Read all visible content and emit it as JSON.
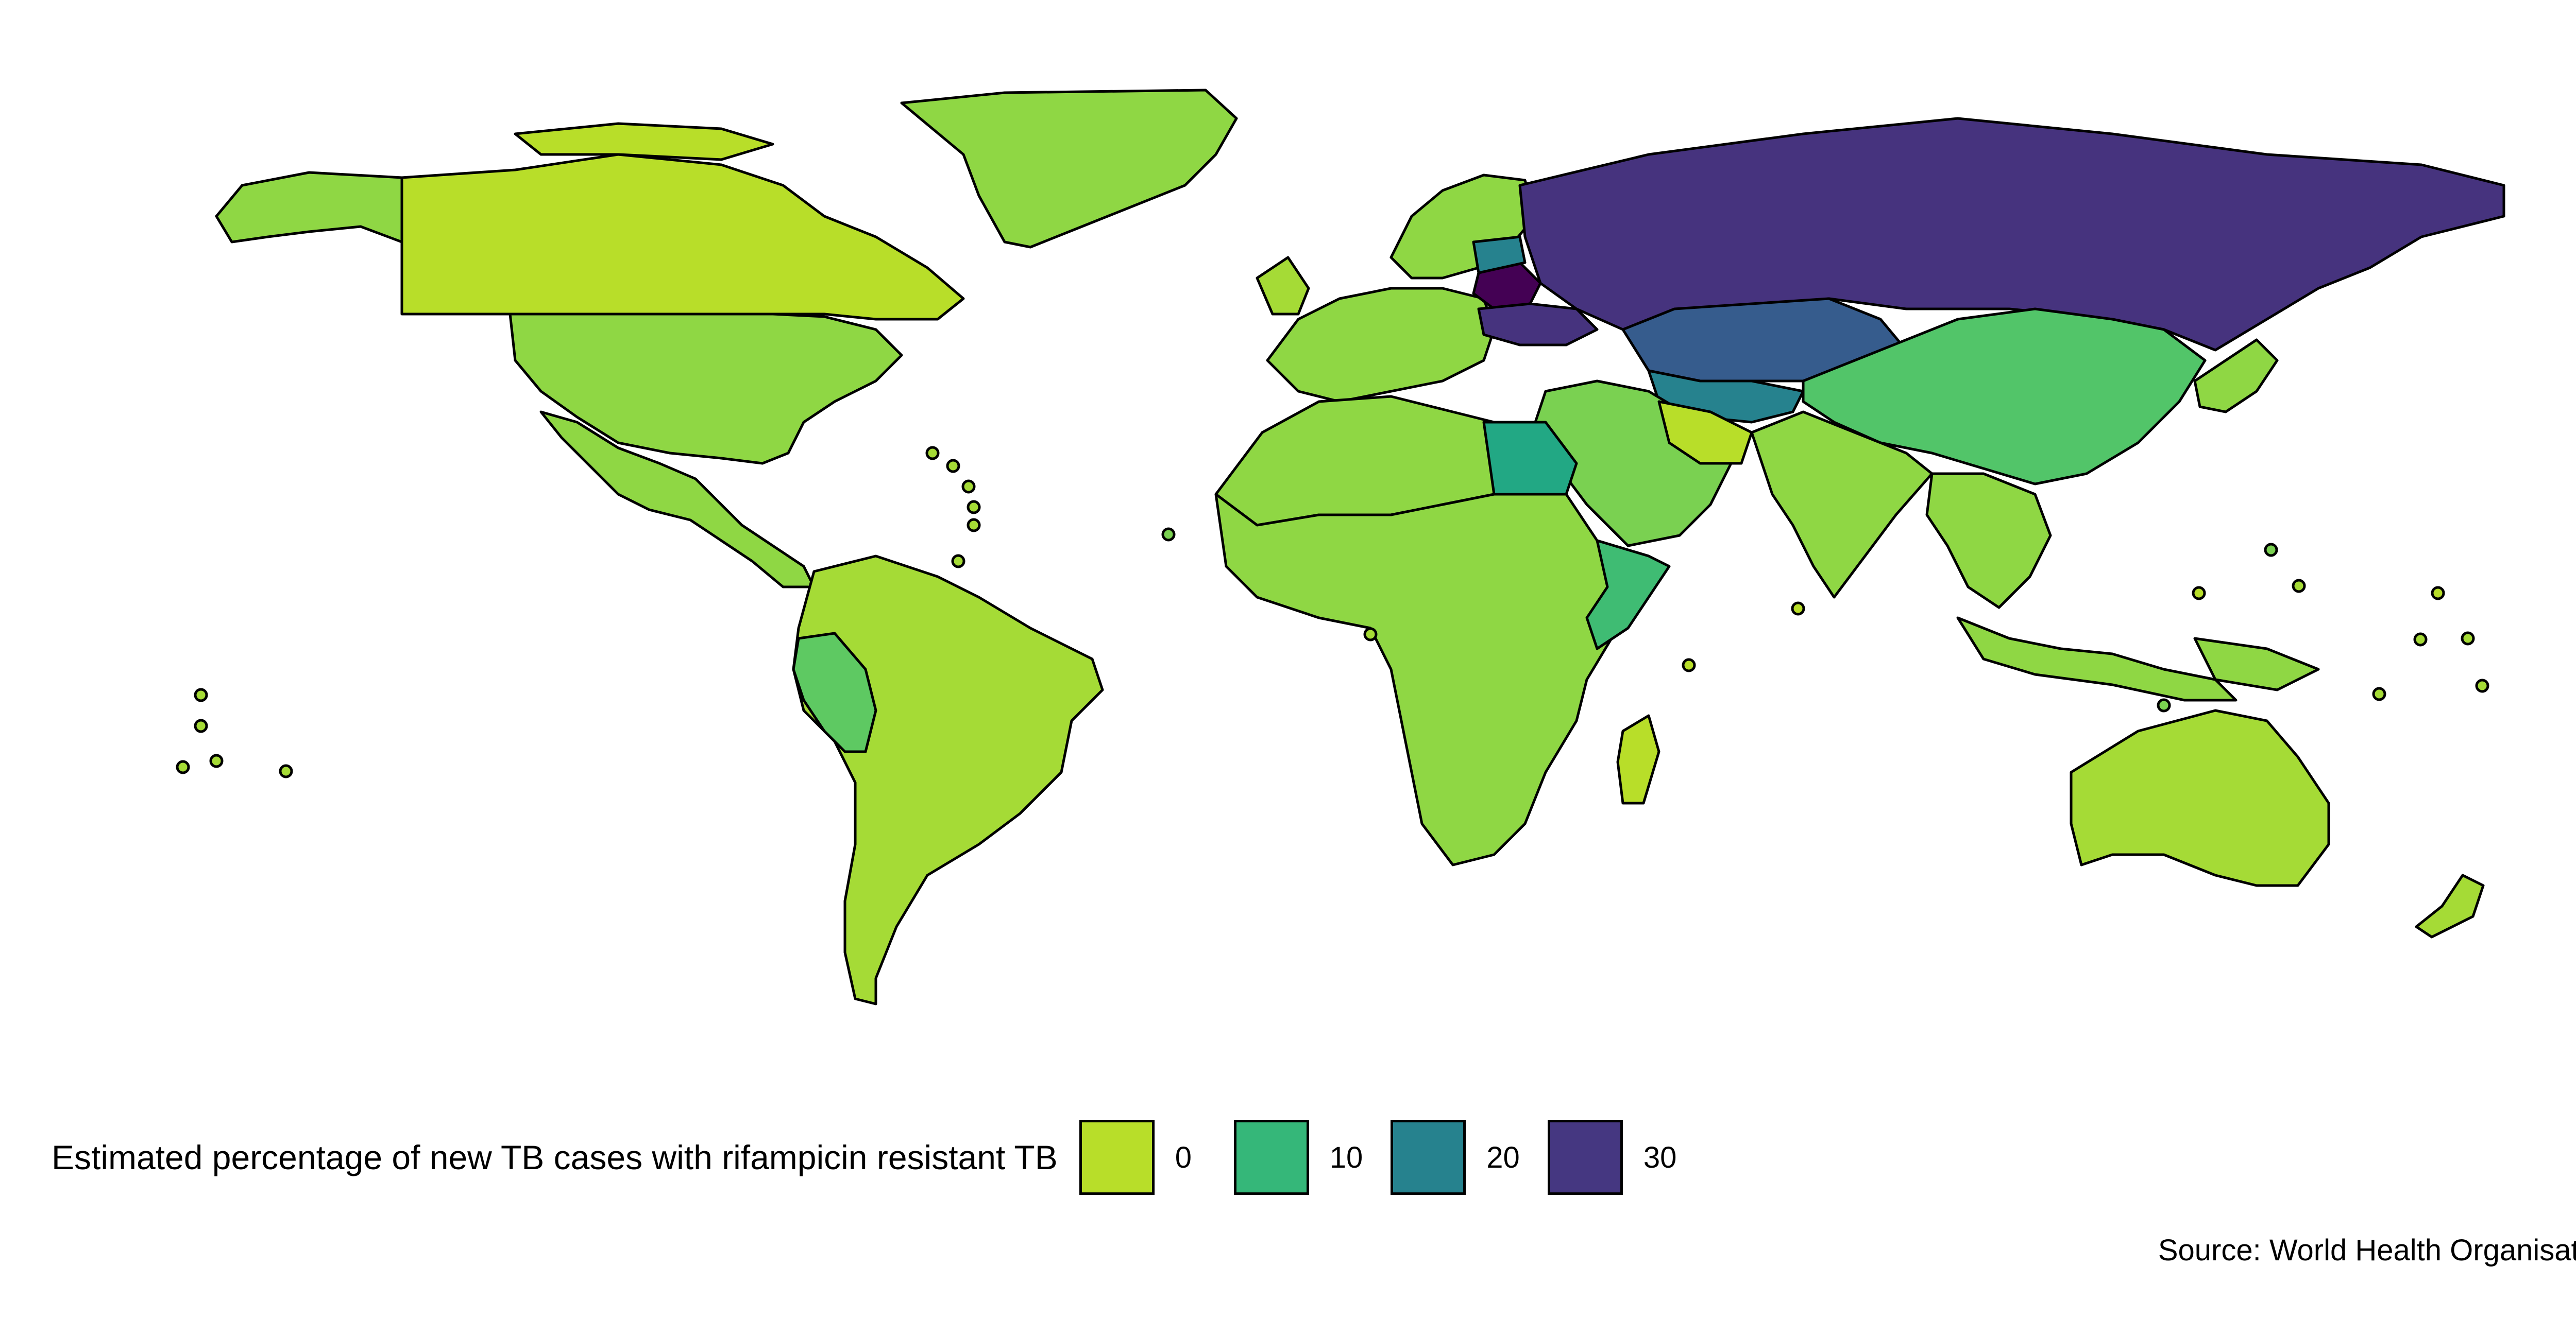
{
  "map": {
    "type": "choropleth",
    "value_label": "Estimated percentage of new TB cases with rifampicin resistant TB",
    "palette": {
      "0": "#b8de29",
      "10": "#35b779",
      "20": "#26828e",
      "30": "#453781"
    },
    "legend": {
      "title": "Estimated percentage of new TB cases with rifampicin resistant TB",
      "items": [
        {
          "label": "0",
          "color": "#b8de29"
        },
        {
          "label": "10",
          "color": "#35b779"
        },
        {
          "label": "20",
          "color": "#26828e"
        },
        {
          "label": "30",
          "color": "#453781"
        }
      ],
      "placement": "bottom-center"
    },
    "regions": [
      {
        "name": "North America (USA/Canada)",
        "approx_value": 2,
        "color": "#8fd744"
      },
      {
        "name": "Greenland",
        "approx_value": 2,
        "color": "#8fd744"
      },
      {
        "name": "Mexico & Central America",
        "approx_value": 3,
        "color": "#8fd744"
      },
      {
        "name": "South America",
        "approx_value": 1,
        "color": "#a5db36"
      },
      {
        "name": "Peru",
        "approx_value": 6,
        "color": "#5ec962"
      },
      {
        "name": "Europe (West)",
        "approx_value": 3,
        "color": "#8fd744"
      },
      {
        "name": "Belarus",
        "approx_value": 38,
        "color": "#440154"
      },
      {
        "name": "Ukraine / Moldova",
        "approx_value": 28,
        "color": "#46337e"
      },
      {
        "name": "Russia",
        "approx_value": 30,
        "color": "#46337e"
      },
      {
        "name": "Kazakhstan",
        "approx_value": 24,
        "color": "#365c8d"
      },
      {
        "name": "Central Asia",
        "approx_value": 16,
        "color": "#26828e"
      },
      {
        "name": "China & Mongolia",
        "approx_value": 7,
        "color": "#52c569"
      },
      {
        "name": "Middle East",
        "approx_value": 4,
        "color": "#7ad151"
      },
      {
        "name": "Egypt",
        "approx_value": 14,
        "color": "#22a884"
      },
      {
        "name": "Somalia",
        "approx_value": 9,
        "color": "#3fbc73"
      },
      {
        "name": "Africa",
        "approx_value": 3,
        "color": "#8fd744"
      },
      {
        "name": "South & Southeast Asia",
        "approx_value": 3,
        "color": "#8fd744"
      },
      {
        "name": "Japan / Korea",
        "approx_value": 2,
        "color": "#8fd744"
      },
      {
        "name": "Australia & Oceania",
        "approx_value": 1,
        "color": "#a5db36"
      }
    ]
  },
  "source": "Source: World Health Organisation"
}
